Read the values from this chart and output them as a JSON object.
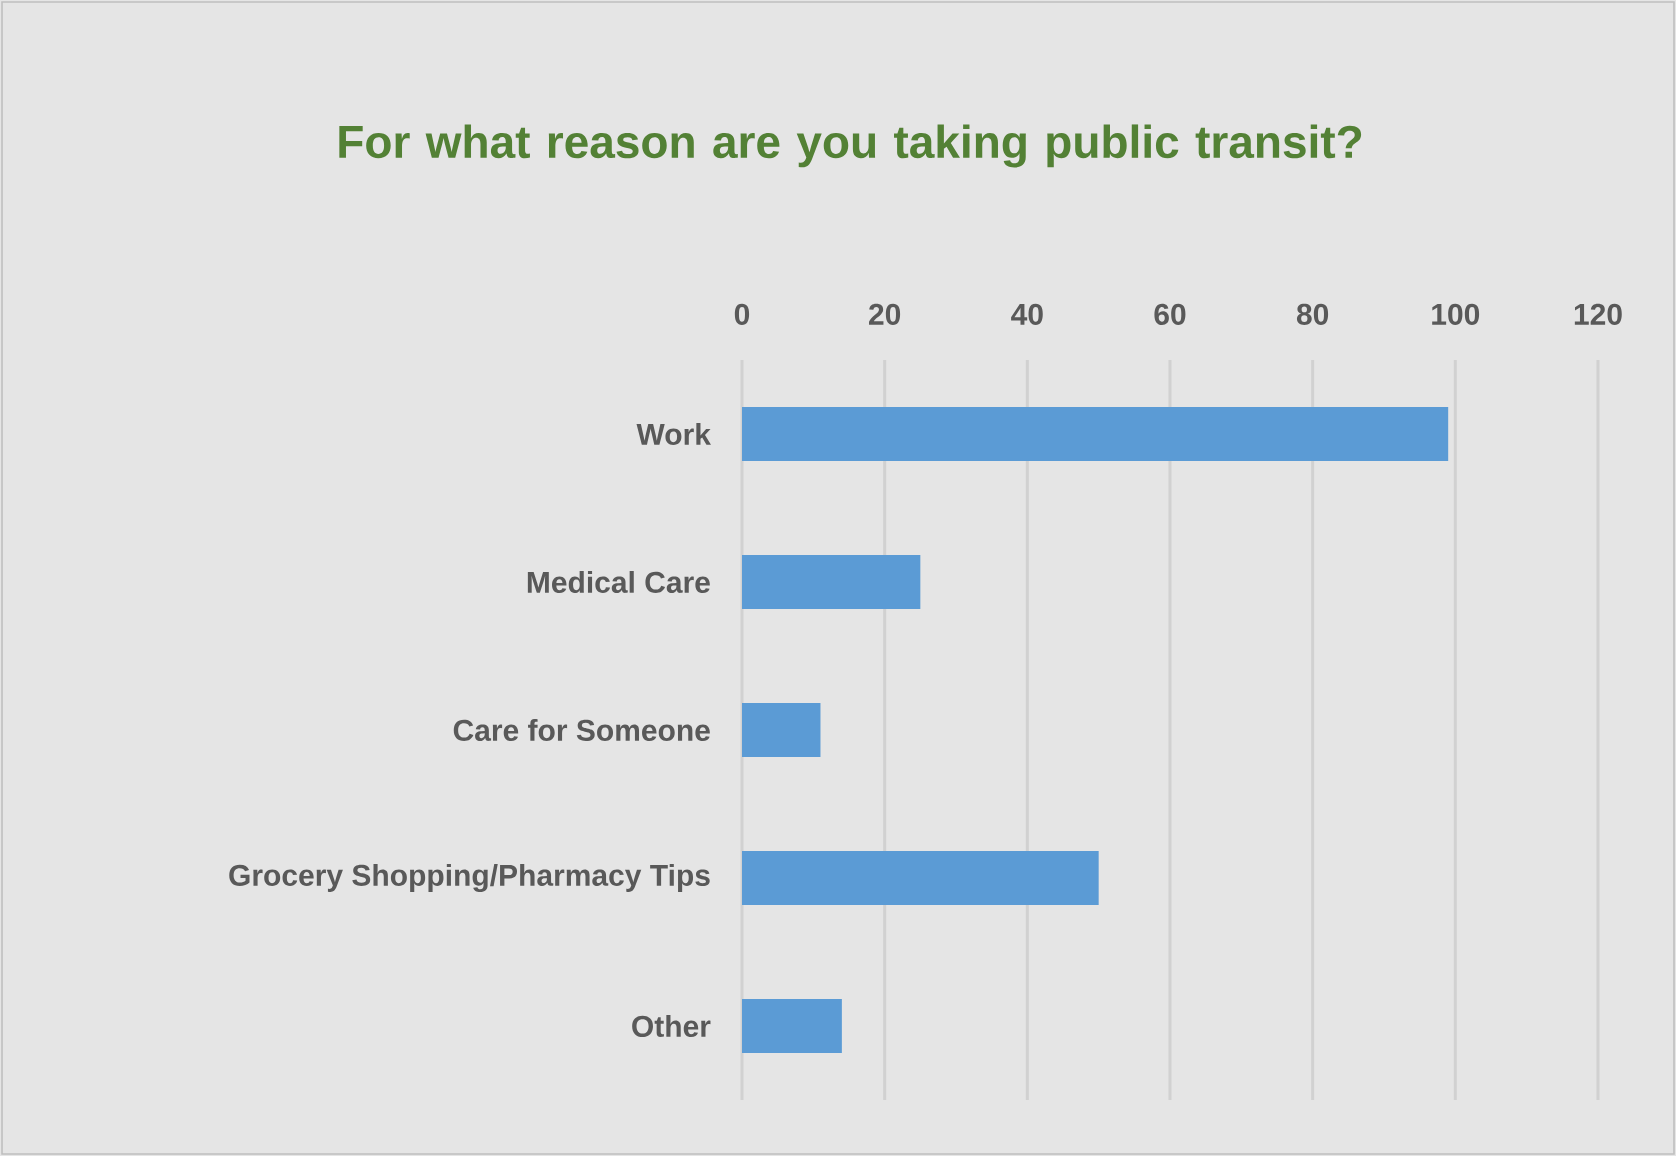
{
  "chart_data": {
    "type": "bar",
    "orientation": "horizontal",
    "title": "For what reason are you taking public transit?",
    "categories": [
      "Work",
      "Medical Care",
      "Care for Someone",
      "Grocery Shopping/Pharmacy Tips",
      "Other"
    ],
    "values": [
      99,
      25,
      11,
      50,
      14
    ],
    "color": "#5b9bd5",
    "xlim": [
      0,
      120
    ],
    "xticks": [
      0,
      20,
      40,
      60,
      80,
      100,
      120
    ],
    "grid": "x"
  }
}
